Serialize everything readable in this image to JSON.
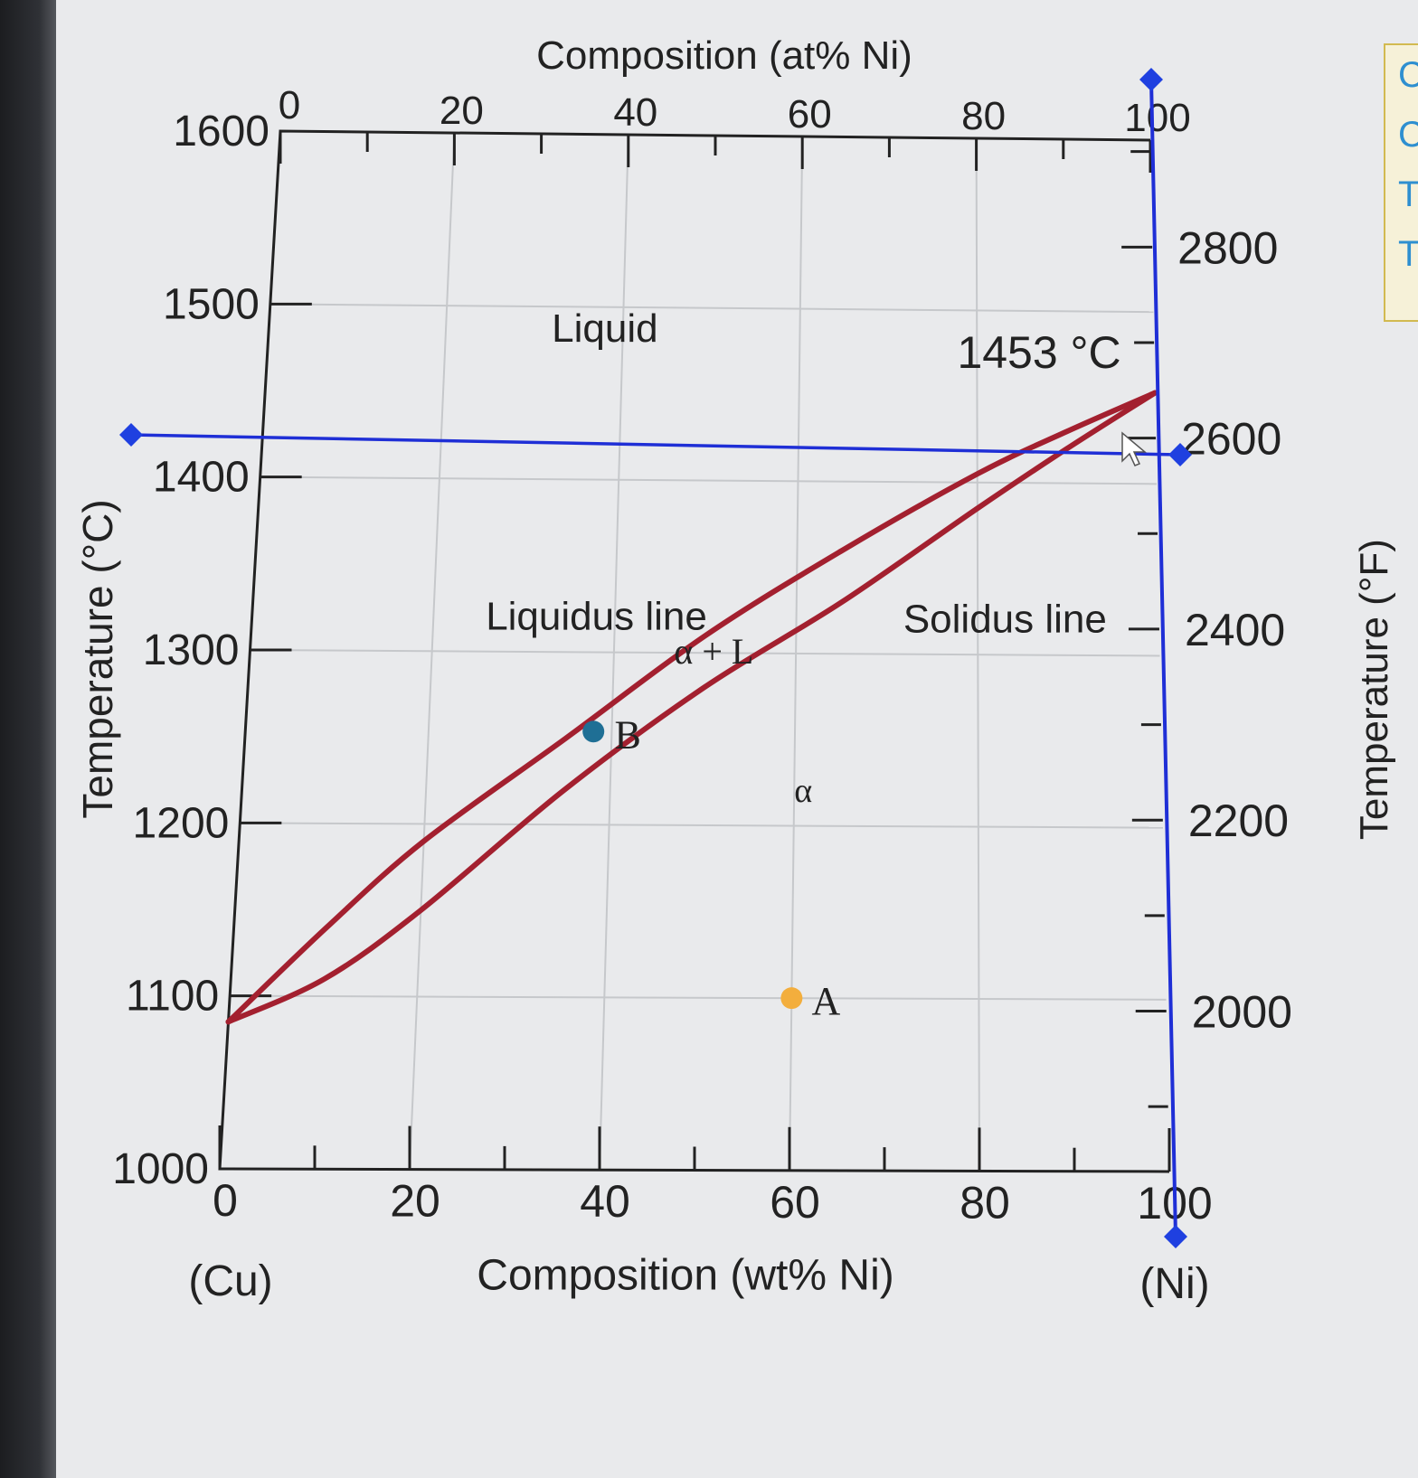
{
  "chart_data": {
    "type": "line",
    "title": "",
    "xlabel": "Composition (wt% Ni)",
    "xlabel_top": "Composition (at% Ni)",
    "ylabel": "Temperature (°C)",
    "ylabel_right": "Temperature (°F)",
    "xlim": [
      0,
      100
    ],
    "ylim": [
      1000,
      1600
    ],
    "grid": true,
    "x_ticks": [
      "0",
      "20",
      "40",
      "60",
      "80",
      "100"
    ],
    "x_ticks_top": [
      "0",
      "20",
      "40",
      "60",
      "80",
      "100"
    ],
    "y_ticks": [
      "1000",
      "1100",
      "1200",
      "1300",
      "1400",
      "1500",
      "1600"
    ],
    "y_ticks_right": [
      "2000",
      "2200",
      "2400",
      "2600",
      "2800"
    ],
    "x_end_labels": [
      "(Cu)",
      "(Ni)"
    ],
    "series": [
      {
        "name": "Liquidus line",
        "x": [
          0,
          10,
          20,
          35,
          50,
          65,
          80,
          90,
          100
        ],
        "y": [
          1085,
          1140,
          1190,
          1250,
          1310,
          1360,
          1405,
          1430,
          1453
        ]
      },
      {
        "name": "Solidus line",
        "x": [
          0,
          10,
          20,
          35,
          50,
          65,
          80,
          90,
          100
        ],
        "y": [
          1085,
          1110,
          1150,
          1220,
          1280,
          1330,
          1385,
          1420,
          1453
        ]
      }
    ],
    "points": [
      {
        "label": "A",
        "x": 60,
        "y": 1100,
        "color": "#f3ae3d"
      },
      {
        "label": "B",
        "x": 38,
        "y": 1254,
        "color": "#1f6f95"
      }
    ],
    "region_labels": {
      "liquid": "Liquid",
      "two_phase": "α + L",
      "solid": "α"
    },
    "annotation_melting": "1453 °C",
    "overlay_lines": [
      {
        "type": "horizontal",
        "y": 1414,
        "color": "#1f2fd6"
      },
      {
        "type": "vertical",
        "x": 100,
        "color": "#1f2fd6"
      }
    ],
    "colors": {
      "curves": "#a3202f",
      "overlay": "#1f2fd6",
      "grid": "#c6c8cb",
      "axis": "#222222",
      "handle": "#1f40e0"
    }
  },
  "side_panel": [
    "C",
    "C",
    "T",
    "T"
  ]
}
